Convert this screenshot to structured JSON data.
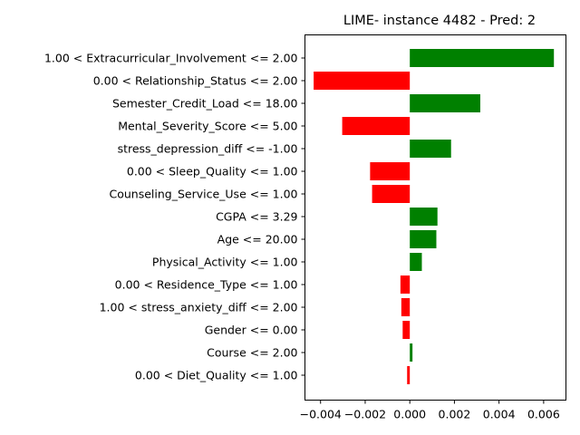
{
  "chart_data": {
    "type": "bar",
    "orientation": "horizontal",
    "title": "LIME- instance 4482 - Pred: 2",
    "xlabel": "",
    "ylabel": "",
    "xlim": [
      -0.0047,
      0.007
    ],
    "grid": false,
    "legend": "none",
    "positive_color": "#008000",
    "negative_color": "#ff0000",
    "categories": [
      "1.00 < Extracurricular_Involvement <= 2.00",
      "0.00 < Relationship_Status <= 2.00",
      "Semester_Credit_Load <= 18.00",
      "Mental_Severity_Score <= 5.00",
      "stress_depression_diff <= -1.00",
      "0.00 < Sleep_Quality <= 1.00",
      "Counseling_Service_Use <= 1.00",
      "CGPA <= 3.29",
      "Age <= 20.00",
      "Physical_Activity <= 1.00",
      "0.00 < Residence_Type <= 1.00",
      "1.00 < stress_anxiety_diff <= 2.00",
      "Gender <= 0.00",
      "Course <= 2.00",
      "0.00 < Diet_Quality <= 1.00"
    ],
    "values": [
      0.00646,
      -0.00431,
      0.00316,
      -0.00303,
      0.00185,
      -0.00178,
      -0.00169,
      0.00124,
      0.00119,
      0.00054,
      -0.00042,
      -0.00038,
      -0.00032,
      0.00012,
      -0.00012
    ],
    "xticks": [
      -0.004,
      -0.002,
      0.0,
      0.002,
      0.004,
      0.006
    ],
    "xtick_labels": [
      "−0.004",
      "−0.002",
      "0.000",
      "0.002",
      "0.004",
      "0.006"
    ]
  }
}
